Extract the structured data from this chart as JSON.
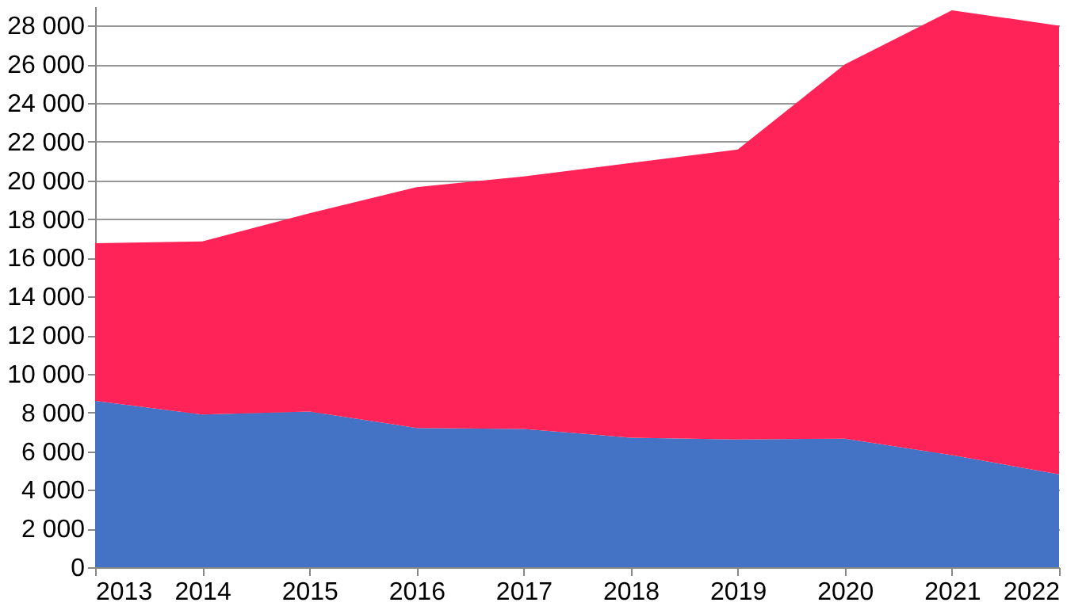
{
  "chart_data": {
    "type": "area",
    "stacked": true,
    "categories": [
      "2013",
      "2014",
      "2015",
      "2016",
      "2017",
      "2018",
      "2019",
      "2020",
      "2021",
      "2022"
    ],
    "series": [
      {
        "color": "#4472c4",
        "values": [
          8600,
          7900,
          8050,
          7200,
          7150,
          6700,
          6600,
          6650,
          5800,
          4800
        ]
      },
      {
        "color": "#ff2357",
        "values": [
          8150,
          8950,
          10250,
          12450,
          13050,
          14200,
          15000,
          19350,
          23000,
          23200
        ]
      }
    ],
    "ylim": [
      0,
      29000
    ],
    "yticks": [
      0,
      {
        "value": 2000,
        "label": "2 000"
      },
      {
        "value": 4000,
        "label": "4 000"
      },
      {
        "value": 6000,
        "label": "6 000"
      },
      {
        "value": 8000,
        "label": "8 000"
      },
      {
        "value": 10000,
        "label": "10 000"
      },
      {
        "value": 12000,
        "label": "12 000"
      },
      {
        "value": 14000,
        "label": "14 000"
      },
      {
        "value": 16000,
        "label": "16 000"
      },
      {
        "value": 18000,
        "label": "18 000"
      },
      {
        "value": 20000,
        "label": "20 000"
      },
      {
        "value": 22000,
        "label": "22 000"
      },
      {
        "value": 24000,
        "label": "24 000"
      },
      {
        "value": 26000,
        "label": "26 000"
      },
      {
        "value": 28000,
        "label": "28 000"
      }
    ],
    "grid": "y",
    "legend": false
  }
}
